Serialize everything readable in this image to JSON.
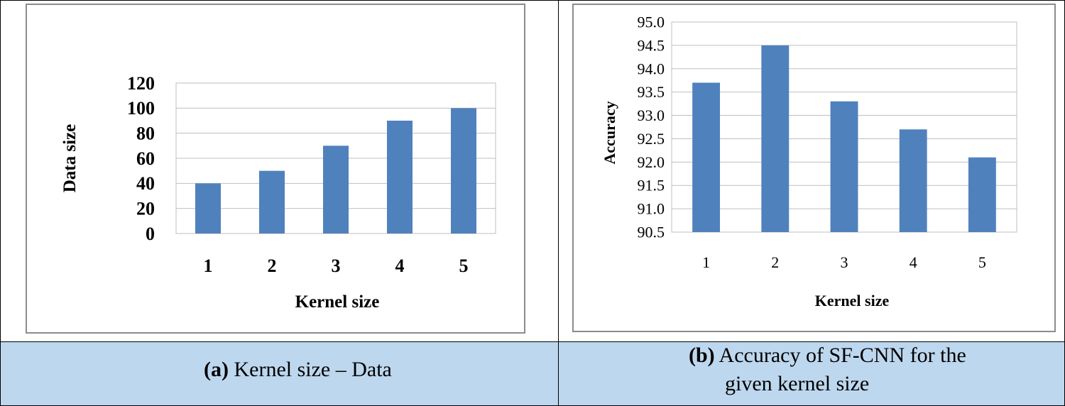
{
  "chart_data": [
    {
      "type": "bar",
      "title": "",
      "xlabel": "Kernel size",
      "ylabel": "Data size",
      "categories": [
        "1",
        "2",
        "3",
        "4",
        "5"
      ],
      "values": [
        40,
        50,
        70,
        90,
        100
      ],
      "ylim": [
        0,
        120
      ],
      "yticks": [
        "0",
        "20",
        "40",
        "60",
        "80",
        "100",
        "120"
      ],
      "grid": true,
      "bar_color": "#4f81bd"
    },
    {
      "type": "bar",
      "title": "",
      "xlabel": "Kernel size",
      "ylabel": "Accuracy",
      "categories": [
        "1",
        "2",
        "3",
        "4",
        "5"
      ],
      "values": [
        93.7,
        94.5,
        93.3,
        92.7,
        92.1
      ],
      "ylim": [
        90.5,
        95.0
      ],
      "yticks": [
        "90.5",
        "91.0",
        "91.5",
        "92.0",
        "92.5",
        "93.0",
        "93.5",
        "94.0",
        "94.5",
        "95.0"
      ],
      "grid": true,
      "bar_color": "#4f81bd"
    }
  ],
  "captions": {
    "a": {
      "label": "(a)",
      "text": "Kernel size – Data"
    },
    "b": {
      "label": "(b)",
      "line1": "Accuracy of SF-CNN for the",
      "line2": "given kernel size"
    }
  },
  "colors": {
    "caption_bg": "#bdd7ee",
    "bar": "#4f81bd",
    "grid": "#bfbfbf"
  }
}
